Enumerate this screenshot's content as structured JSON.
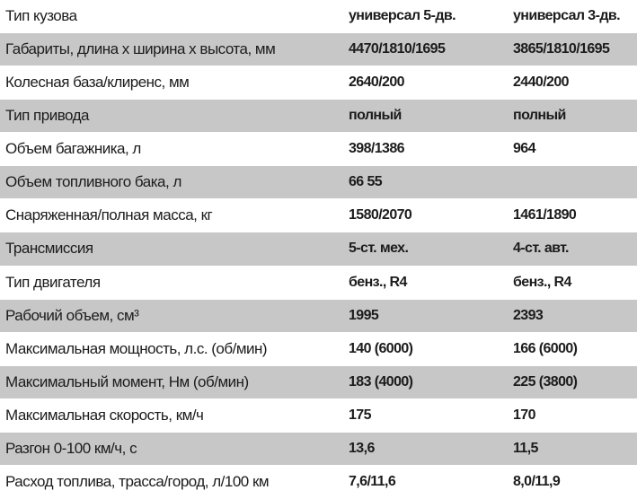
{
  "table": {
    "rows": [
      [
        "Тип кузова",
        "универсал 5-дв.",
        "универсал 3-дв."
      ],
      [
        "Габариты, длина х ширина х высота, мм",
        "4470/1810/1695",
        "3865/1810/1695"
      ],
      [
        "Колесная база/клиренс, мм",
        "2640/200",
        "2440/200"
      ],
      [
        "Тип привода",
        "полный",
        "полный"
      ],
      [
        "Объем багажника, л",
        "398/1386",
        "964"
      ],
      [
        "Объем топливного бака, л",
        "66 55"
      ],
      [
        "Снаряженная/полная масса, кг",
        "1580/2070",
        "1461/1890"
      ],
      [
        "Трансмиссия",
        "5-ст. мех.",
        "4-ст. авт."
      ],
      [
        "Тип двигателя",
        "бенз., R4",
        "бенз., R4"
      ],
      [
        "Рабочий объем, см³",
        "1995",
        "2393"
      ],
      [
        "Максимальная мощность, л.с. (об/мин)",
        "140 (6000)",
        "166 (6000)"
      ],
      [
        "Максимальный момент, Нм (об/мин)",
        "183 (4000)",
        "225 (3800)"
      ],
      [
        "Максимальная скорость, км/ч",
        "175",
        "170"
      ],
      [
        "Разгон 0-100 км/ч, с",
        "13,6",
        "11,5"
      ],
      [
        "Расход топлива, трасса/город, л/100 км",
        "7,6/11,6",
        "8,0/11,9"
      ]
    ]
  }
}
